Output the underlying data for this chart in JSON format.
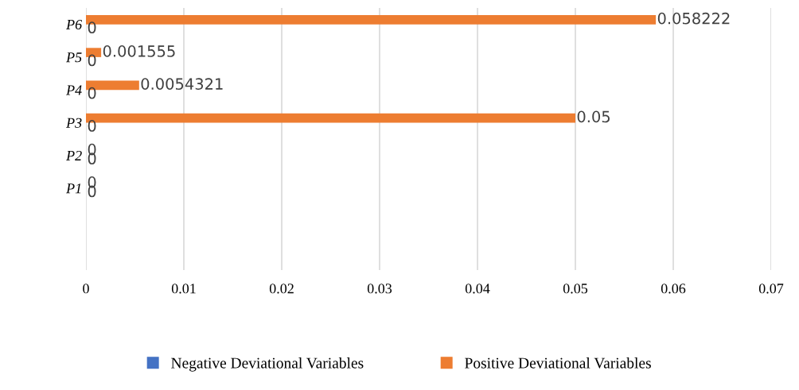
{
  "chart_data": {
    "type": "bar",
    "orientation": "horizontal",
    "categories": [
      "P6",
      "P5",
      "P4",
      "P3",
      "P2",
      "P1",
      null,
      null
    ],
    "series": [
      {
        "name": "Negative Deviational Variables",
        "color": "#4472c4",
        "values": [
          0,
          0,
          0,
          0,
          0,
          0,
          null,
          null
        ]
      },
      {
        "name": "Positive Deviational Variables",
        "color": "#ed7d31",
        "values": [
          0.058222,
          0.001555,
          0.0054321,
          0.05,
          0,
          0,
          null,
          null
        ]
      }
    ],
    "xlim": [
      0,
      0.07
    ],
    "xticks": [
      0,
      0.01,
      0.02,
      0.03,
      0.04,
      0.05,
      0.06,
      0.07
    ],
    "grid": "x",
    "legend": "bottom",
    "data_labels": true
  }
}
